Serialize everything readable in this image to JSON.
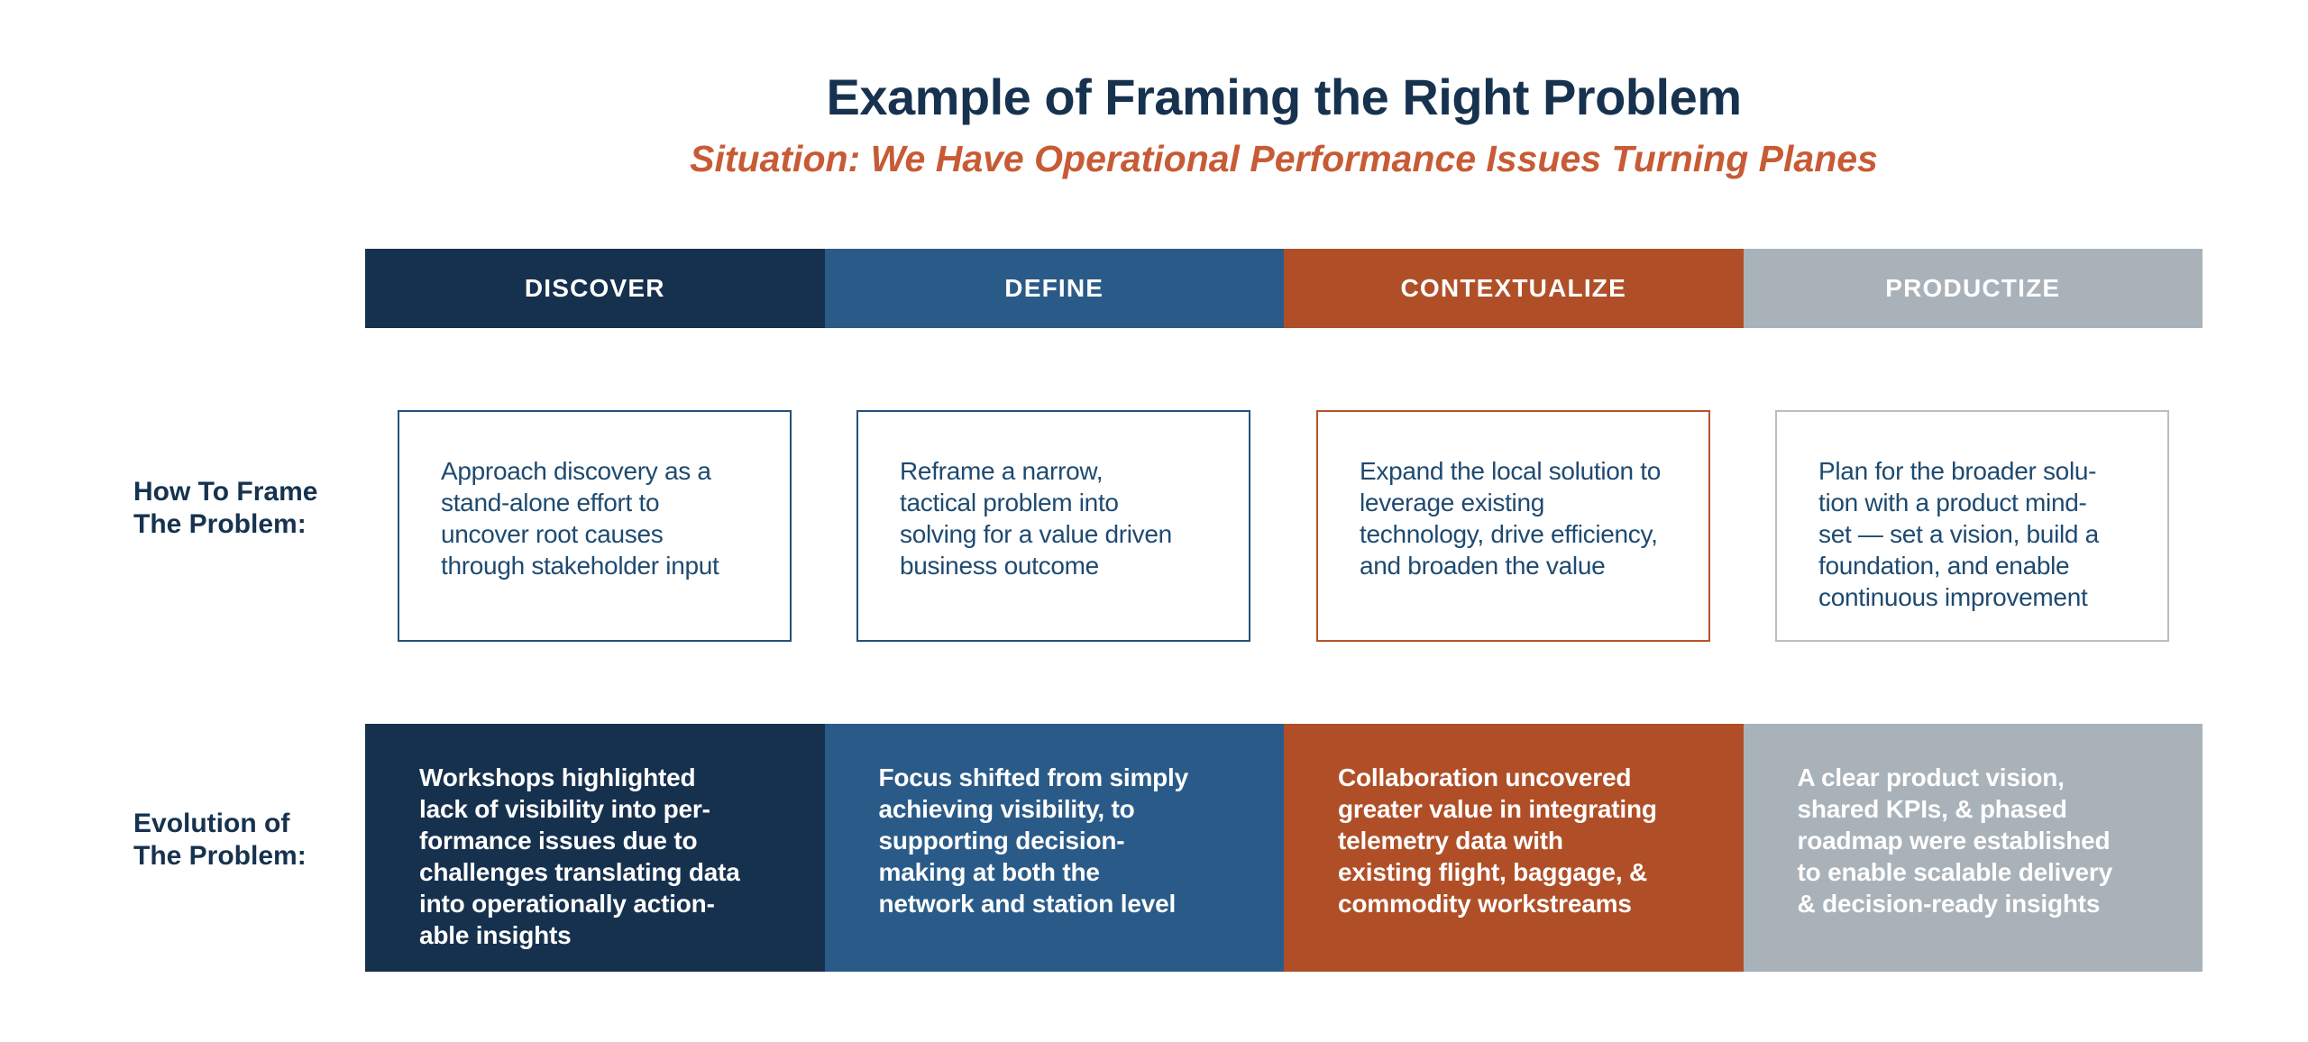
{
  "header": {
    "title": "Example of Framing the Right Problem",
    "subtitle": "Situation: We Have Operational Performance Issues Turning Planes"
  },
  "row_labels": {
    "frame": "How To Frame\nThe Problem:",
    "evolution": "Evolution of\nThe Problem:"
  },
  "phases": [
    {
      "name": "DISCOVER",
      "color": "#16314E",
      "frame_border": "#24517C",
      "frame_text": "Approach discovery as a\nstand-alone effort to\nuncover root causes\nthrough stakeholder input",
      "evolution_text": "Workshops highlighted\nlack of visibility into per-\nformance issues due to\nchallenges translating data\ninto operationally action-\nable insights"
    },
    {
      "name": "DEFINE",
      "color": "#2A5B88",
      "frame_border": "#24517C",
      "frame_text": "Reframe a narrow,\ntactical problem into\nsolving for a value driven\nbusiness outcome",
      "evolution_text": "Focus shifted from simply\nachieving visibility, to\nsupporting decision-\nmaking at both the\nnetwork and station level"
    },
    {
      "name": "CONTEXTUALIZE",
      "color": "#B04F27",
      "frame_border": "#B45429",
      "frame_text": "Expand the local solution to\nleverage existing\ntechnology, drive efficiency,\nand broaden the value",
      "evolution_text": "Collaboration uncovered\ngreater value in integrating\ntelemetry data with\nexisting flight, baggage, &\ncommodity workstreams"
    },
    {
      "name": "PRODUCTIZE",
      "color": "#A9B2B9",
      "frame_border": "#B8BEC4",
      "frame_text": "Plan for the broader solu-\ntion with a product mind-\nset — set a vision, build a\nfoundation, and enable\ncontinuous improvement",
      "evolution_text": "A clear product vision,\nshared KPIs, & phased\nroadmap were established\nto enable scalable delivery\n& decision-ready insights"
    }
  ],
  "colors": {
    "title": "#16324F",
    "subtitle": "#C75B35",
    "row_label": "#16324F",
    "frame_body_text": "#1E4A70",
    "header_text": "#FFFFFF",
    "background": "#FFFFFF"
  }
}
